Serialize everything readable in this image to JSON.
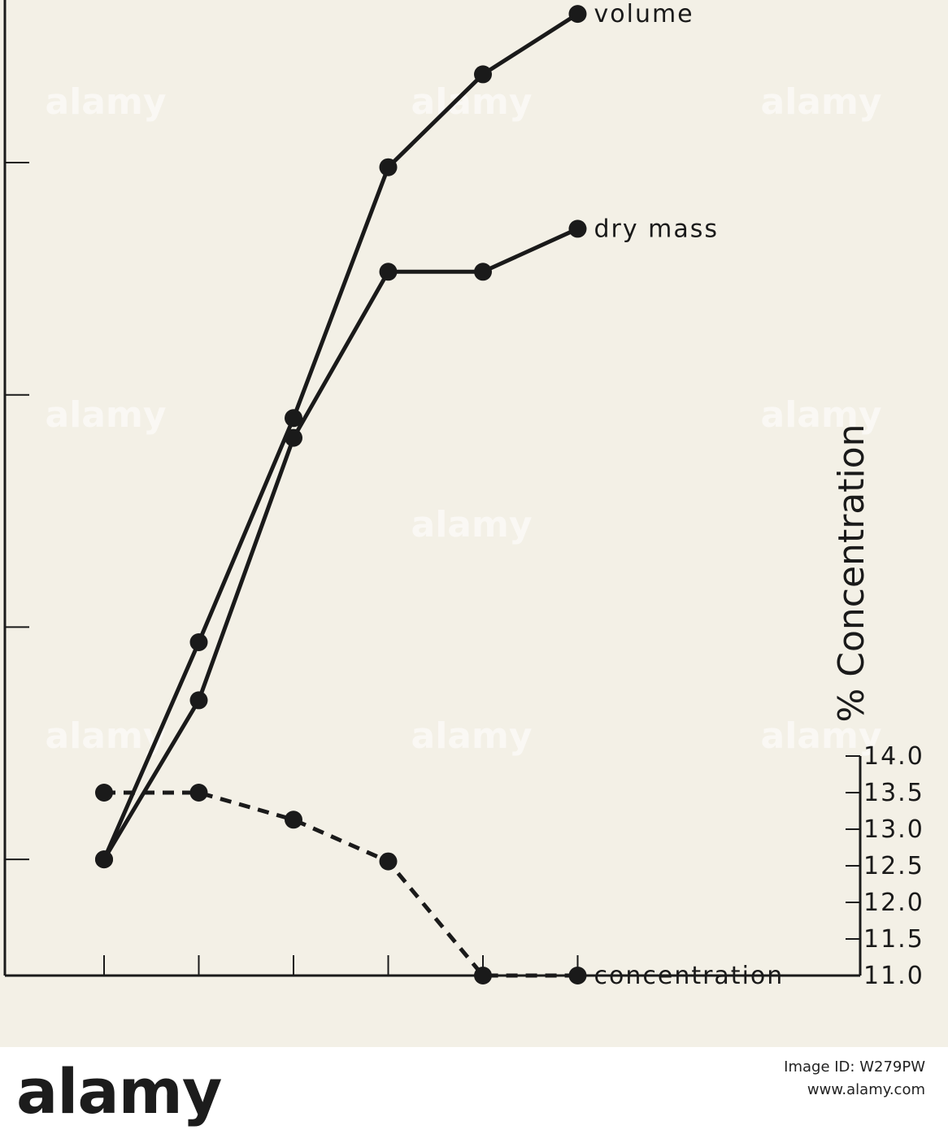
{
  "chart_data": {
    "type": "line",
    "title": "",
    "x": [
      0,
      1,
      2,
      3,
      4,
      5
    ],
    "series": [
      {
        "name": "volume",
        "style": "solid",
        "axis": "left",
        "values": [
          1.0,
          2.87,
          4.8,
          6.96,
          7.76,
          8.28
        ]
      },
      {
        "name": "dry mass",
        "style": "solid",
        "axis": "left",
        "values": [
          1.0,
          2.37,
          4.63,
          6.06,
          6.06,
          6.43
        ]
      },
      {
        "name": "concentration",
        "style": "dashed",
        "axis": "right",
        "values": [
          13.5,
          13.5,
          13.13,
          12.56,
          11.0,
          11.0
        ]
      }
    ],
    "right_axis": {
      "label": "% Concentration",
      "ticks": [
        14.0,
        13.5,
        13.0,
        12.5,
        12.0,
        11.5,
        11.0
      ],
      "tick_labels": [
        "14.0",
        "13.5",
        "13.0",
        "12.5",
        "12.0",
        "11.5",
        "11.0"
      ],
      "ylim": [
        11.0,
        14.0
      ]
    },
    "left_axis": {
      "ticks": [
        1,
        3,
        5,
        7
      ],
      "ylim": [
        0.0,
        8.4
      ]
    },
    "grid": false,
    "legend": "end-of-line labels",
    "colors": {
      "line": "#1a1a1a",
      "background": "#f3f0e6"
    }
  },
  "watermark": {
    "text": "alamy"
  },
  "footer": {
    "logo": "alamy",
    "image_id": "Image ID: W279PW",
    "url": "www.alamy.com"
  }
}
